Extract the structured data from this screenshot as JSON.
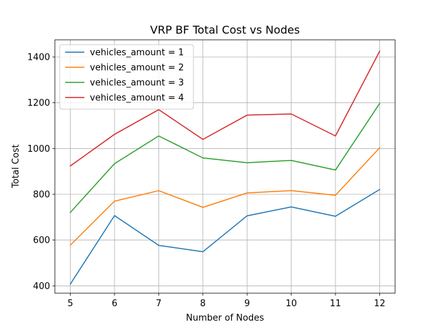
{
  "chart_data": {
    "type": "line",
    "title": "VRP BF Total Cost vs Nodes",
    "xlabel": "Number of Nodes",
    "ylabel": "Total Cost",
    "x": [
      5,
      6,
      7,
      8,
      9,
      10,
      11,
      12
    ],
    "xlim": [
      4.65,
      12.35
    ],
    "ylim": [
      368,
      1475
    ],
    "xticks": [
      "5",
      "6",
      "7",
      "8",
      "9",
      "10",
      "11",
      "12"
    ],
    "yticks": [
      "400",
      "600",
      "800",
      "1000",
      "1200",
      "1400"
    ],
    "grid": true,
    "legend_position": "top-left",
    "series": [
      {
        "name": "vehicles_amount = 1",
        "color": "#1f77b4",
        "values": [
          408,
          707,
          577,
          549,
          706,
          745,
          704,
          821
        ]
      },
      {
        "name": "vehicles_amount = 2",
        "color": "#ff7f0e",
        "values": [
          578,
          770,
          816,
          743,
          806,
          816,
          796,
          1003
        ]
      },
      {
        "name": "vehicles_amount = 3",
        "color": "#2ca02c",
        "values": [
          721,
          934,
          1055,
          959,
          938,
          948,
          906,
          1197
        ]
      },
      {
        "name": "vehicles_amount = 4",
        "color": "#d62728",
        "values": [
          924,
          1062,
          1170,
          1040,
          1146,
          1151,
          1055,
          1425
        ]
      }
    ]
  }
}
